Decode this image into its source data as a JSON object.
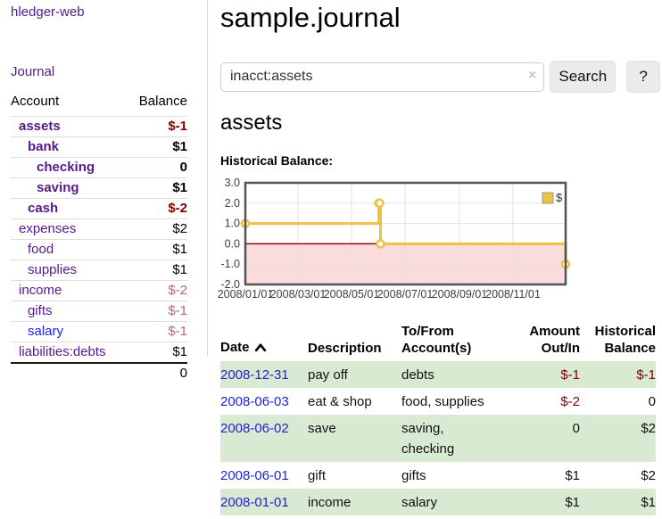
{
  "app": {
    "brand": "hledger-web",
    "nav": {
      "journal_label": "Journal"
    }
  },
  "colors": {
    "purple_link": "#551a8b",
    "blue_link": "#2323cc",
    "negative_strong": "#800000",
    "negative_muted": "#b46a6a",
    "row_green": "#d9ead3",
    "series_gold": "#edc240",
    "chart_negative_region": "#fbdcdc",
    "chart_zero_line": "#9e0000"
  },
  "icons": {
    "clear_search": "×",
    "sort_asc": "chevron-up-icon",
    "legend_swatch": "gold-square"
  },
  "sidebar": {
    "header": {
      "account": "Account",
      "balance": "Balance"
    },
    "accounts": [
      {
        "name": "assets",
        "balance": "$-1"
      },
      {
        "name": "bank",
        "balance": "$1"
      },
      {
        "name": "checking",
        "balance": "0"
      },
      {
        "name": "saving",
        "balance": "$1"
      },
      {
        "name": "cash",
        "balance": "$-2"
      },
      {
        "name": "expenses",
        "balance": "$2"
      },
      {
        "name": "food",
        "balance": "$1"
      },
      {
        "name": "supplies",
        "balance": "$1"
      },
      {
        "name": "income",
        "balance": "$-2"
      },
      {
        "name": "gifts",
        "balance": "$-1"
      },
      {
        "name": "salary",
        "balance": "$-1"
      },
      {
        "name": "liabilities:debts",
        "balance": "$1"
      }
    ],
    "total": "0"
  },
  "header": {
    "title": "sample.journal"
  },
  "search": {
    "value": "inacct:assets",
    "placeholder": "",
    "button_label": "Search",
    "help_label": "?"
  },
  "account_page": {
    "title": "assets",
    "chart_heading": "Historical Balance:"
  },
  "chart_data": {
    "type": "line",
    "title": "Historical Balance:",
    "step": true,
    "x_range": [
      "2008-01-01",
      "2008-12-31"
    ],
    "ylim": [
      -2,
      3
    ],
    "yticks": [
      "3.0",
      "2.0",
      "1.0",
      "0.0",
      "-1.0",
      "-2.0"
    ],
    "xticks": [
      "2008/01/01",
      "2008/03/01",
      "2008/05/01",
      "2008/07/01",
      "2008/09/01",
      "2008/11/01"
    ],
    "legend": {
      "label": "$",
      "position": "top-right"
    },
    "grid": true,
    "series": [
      {
        "name": "$",
        "color": "#edc240",
        "points": [
          [
            "2008-01-01",
            1
          ],
          [
            "2008-06-01",
            2
          ],
          [
            "2008-06-02",
            2
          ],
          [
            "2008-06-03",
            0
          ],
          [
            "2008-12-31",
            -1
          ]
        ]
      }
    ]
  },
  "register": {
    "columns": [
      "Date",
      "Description",
      "To/From Account(s)",
      "Amount Out/In",
      "Historical Balance"
    ],
    "rows": [
      {
        "date": "2008-12-31",
        "description": "pay off",
        "accounts": "debts",
        "amount": "$-1",
        "balance": "$-1"
      },
      {
        "date": "2008-06-03",
        "description": "eat & shop",
        "accounts": "food, supplies",
        "amount": "$-2",
        "balance": "0"
      },
      {
        "date": "2008-06-02",
        "description": "save",
        "accounts": "saving, checking",
        "amount": "0",
        "balance": "$2"
      },
      {
        "date": "2008-06-01",
        "description": "gift",
        "accounts": "gifts",
        "amount": "$1",
        "balance": "$2"
      },
      {
        "date": "2008-01-01",
        "description": "income",
        "accounts": "salary",
        "amount": "$1",
        "balance": "$1"
      }
    ]
  }
}
